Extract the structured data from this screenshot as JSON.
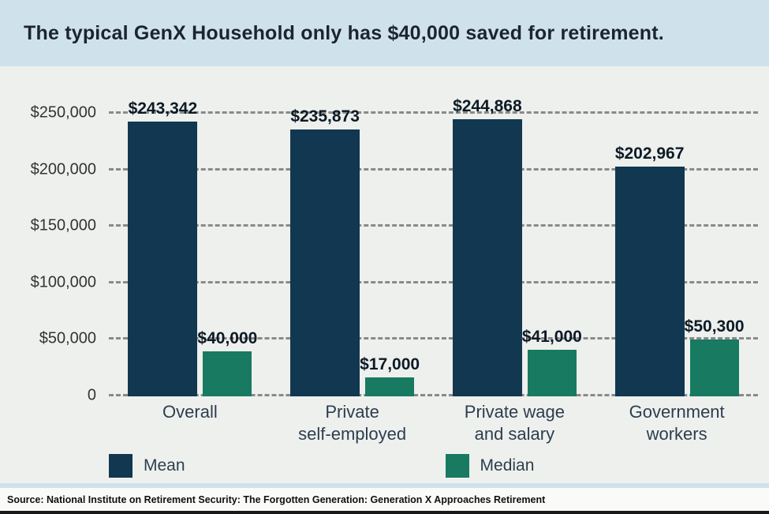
{
  "title": "The typical GenX Household only has $40,000 saved for retirement.",
  "source": "Source: National Institute on Retirement Security: The Forgotten Generation: Generation X Approaches Retirement",
  "colors": {
    "mean": "#123750",
    "median": "#177a61",
    "page_bg": "#cfe2ec",
    "panel_bg": "#eef0ed",
    "footer_bg": "#fafbf8",
    "gridline": "#8a8a8a",
    "title_text": "#1b2430",
    "axis_text": "#333333",
    "category_text": "#2c3e50",
    "value_text": "#0d1b26"
  },
  "chart_data": {
    "type": "bar",
    "categories": [
      "Overall",
      "Private\nself-employed",
      "Private wage\nand salary",
      "Government\nworkers"
    ],
    "series": [
      {
        "name": "Mean",
        "color_key": "mean",
        "values": [
          243342,
          235873,
          244868,
          202967
        ],
        "labels": [
          "$243,342",
          "$235,873",
          "$244,868",
          "$202,967"
        ]
      },
      {
        "name": "Median",
        "color_key": "median",
        "values": [
          40000,
          17000,
          41000,
          50300
        ],
        "labels": [
          "$40,000",
          "$17,000",
          "$41,000",
          "$50,300"
        ]
      }
    ],
    "ylim": [
      0,
      250000
    ],
    "yticks": [
      0,
      50000,
      100000,
      150000,
      200000,
      250000
    ],
    "ytick_labels": [
      "0",
      "$50,000",
      "$100,000",
      "$150,000",
      "$200,000",
      "$250,000"
    ],
    "grid": "dashed",
    "legend": [
      "Mean",
      "Median"
    ],
    "legend_position": "bottom"
  }
}
